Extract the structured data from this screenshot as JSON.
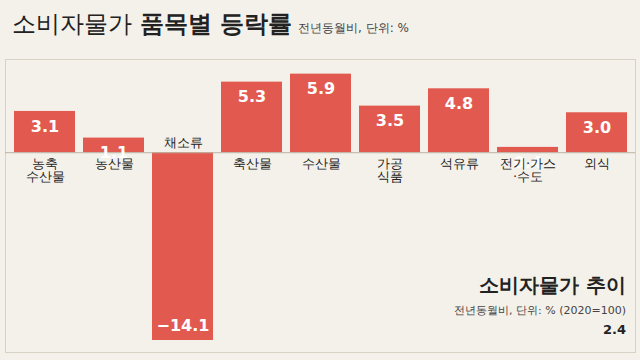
{
  "chart_data": {
    "type": "bar",
    "title": "소비자물가 품목별 등락률",
    "subtitle": "전년동월비, 단위: %",
    "categories": [
      "농축\n수산물",
      "농산물",
      "채소류",
      "축산물",
      "수산물",
      "가공\n식품",
      "석유류",
      "전기·가스\n·수도",
      "외식"
    ],
    "values": [
      3.1,
      1.1,
      -14.1,
      5.3,
      5.9,
      3.5,
      4.8,
      0.4,
      3.0
    ],
    "color": "#e25a4f",
    "data_labels": true,
    "tick_labels": false,
    "grid": false,
    "ylim": [
      -15,
      7
    ],
    "yticks": [
      0
    ],
    "annotations": [
      "소비자물가 추이",
      "전년동월비, 단위: % (2020=100)",
      "2.4"
    ]
  }
}
